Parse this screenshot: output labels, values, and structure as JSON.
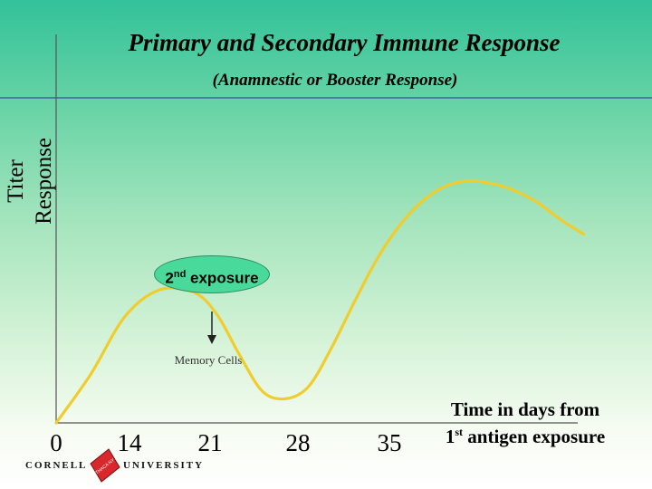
{
  "slide": {
    "title": "Primary and Secondary Immune Response",
    "subtitle": "(Anamnestic or Booster Response)",
    "exposure_label_num": "2",
    "exposure_label_sup": "nd",
    "exposure_label_text": " exposure",
    "memory_label": "Memory Cells",
    "ylabel_line1": "Titer",
    "ylabel_line2": "Response",
    "xcaption_line1": "Time in days from",
    "xcaption_line2_num": "1",
    "xcaption_line2_sup": "st",
    "xcaption_line2_text": " antigen exposure",
    "logo_left": "CORNELL",
    "logo_right": "UNIVERSITY",
    "logo_seal_text": "ITHACA NY",
    "colors": {
      "curve": "#f0cd2f",
      "bubble": "#49d99a",
      "background_top": "#33c29a"
    }
  },
  "chart_data": {
    "type": "line",
    "title": "Primary and Secondary Immune Response",
    "subtitle": "(Anamnestic or Booster Response)",
    "xlabel": "Time in days from 1st antigen exposure",
    "ylabel": "Titer Response",
    "x_ticks": [
      "0",
      "14",
      "21",
      "28",
      "35"
    ],
    "xlim": [
      0,
      48
    ],
    "ylim": [
      0,
      1
    ],
    "grid": false,
    "series": [
      {
        "x": [
          0,
          3,
          6,
          9,
          12,
          14,
          16,
          18,
          20,
          22,
          24,
          26,
          28,
          30,
          32,
          34,
          36,
          38,
          40,
          42,
          44,
          46
        ],
        "y": [
          0.0,
          0.2,
          0.44,
          0.55,
          0.54,
          0.45,
          0.28,
          0.13,
          0.1,
          0.15,
          0.31,
          0.5,
          0.68,
          0.82,
          0.92,
          0.98,
          1.0,
          0.99,
          0.96,
          0.91,
          0.84,
          0.78
        ]
      }
    ]
  }
}
